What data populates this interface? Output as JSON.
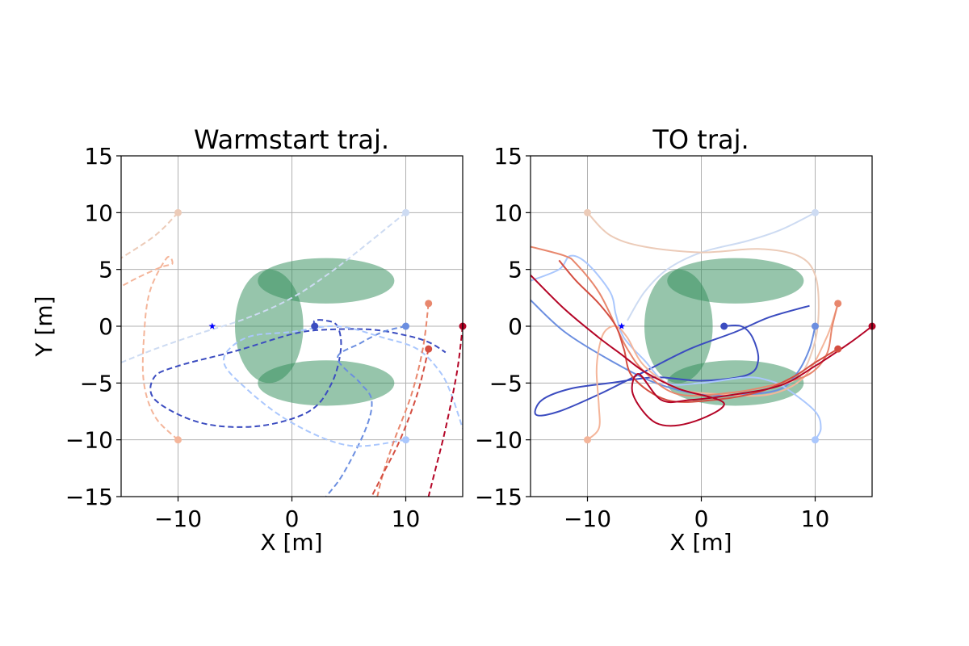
{
  "colors": {
    "obstacle": "#2e8b57",
    "goal_marker": "#0000ff",
    "grid": "#b0b0b0"
  },
  "chart_data": [
    {
      "type": "line",
      "title": "Warmstart traj.",
      "xlabel": "X [m]",
      "ylabel": "Y [m]",
      "xlim": [
        -15,
        15
      ],
      "ylim": [
        -15,
        15
      ],
      "xticks": [
        -10,
        0,
        10
      ],
      "yticks": [
        -15,
        -10,
        -5,
        0,
        5,
        10,
        15
      ],
      "xtick_labels": [
        "−10",
        "0",
        "10"
      ],
      "ytick_labels": [
        "−15",
        "−10",
        "−5",
        "0",
        "5",
        "10",
        "15"
      ],
      "grid": true,
      "line_style": "dashed",
      "obstacles": [
        {
          "shape": "ellipse",
          "cx": 3,
          "cy": 4,
          "rx": 6,
          "ry": 2
        },
        {
          "shape": "ellipse",
          "cx": 3,
          "cy": -5,
          "rx": 6,
          "ry": 2
        },
        {
          "shape": "ellipse",
          "cx": -2,
          "cy": 0,
          "rx": 3,
          "ry": 5
        }
      ],
      "goal": {
        "x": -7,
        "y": 0
      },
      "series": [
        {
          "color": "#3b4cc0",
          "start": {
            "x": 2,
            "y": 0
          },
          "points": [
            [
              2,
              0
            ],
            [
              2,
              0.5
            ],
            [
              3,
              0.5
            ],
            [
              4,
              0
            ],
            [
              4.3,
              -2
            ],
            [
              3.5,
              -5
            ],
            [
              1.5,
              -7.5
            ],
            [
              -3,
              -8.8
            ],
            [
              -8,
              -8.5
            ],
            [
              -12,
              -6.5
            ],
            [
              -12.1,
              -4.5
            ],
            [
              -10,
              -3.5
            ],
            [
              -5,
              -2.2
            ],
            [
              0,
              -0.7
            ],
            [
              3,
              -0.3
            ],
            [
              7,
              -0.3
            ],
            [
              10,
              -0.8
            ],
            [
              12,
              -1.4
            ],
            [
              13.5,
              -2.3
            ]
          ]
        },
        {
          "color": "#6b8ee0",
          "start": {
            "x": 10,
            "y": 0
          },
          "points": [
            [
              10,
              0
            ],
            [
              8,
              -0.5
            ],
            [
              6,
              -1.5
            ],
            [
              4,
              -2.8
            ],
            [
              6,
              -5
            ],
            [
              7,
              -6.5
            ],
            [
              6.5,
              -9
            ],
            [
              4.5,
              -13
            ],
            [
              3,
              -15
            ]
          ]
        },
        {
          "color": "#aac7fd",
          "start": {
            "x": 10,
            "y": -10
          },
          "points": [
            [
              10,
              -10
            ],
            [
              5,
              -10.5
            ],
            [
              0,
              -8.5
            ],
            [
              -4,
              -5.5
            ],
            [
              -6,
              -3
            ],
            [
              -4,
              -1
            ],
            [
              0,
              -0.5
            ],
            [
              4,
              0
            ],
            [
              8,
              -1
            ],
            [
              11,
              -2
            ],
            [
              13,
              -4
            ],
            [
              14,
              -6
            ],
            [
              15,
              -9
            ]
          ]
        },
        {
          "color": "#cddbf2",
          "start": {
            "x": 10,
            "y": 10
          },
          "points": [
            [
              10,
              10
            ],
            [
              4,
              5.2
            ],
            [
              0,
              2.5
            ],
            [
              -4,
              0.7
            ],
            [
              -8,
              -0.6
            ],
            [
              -12,
              -2
            ],
            [
              -15,
              -3.2
            ]
          ]
        },
        {
          "color": "#eccbb8",
          "start": {
            "x": -10,
            "y": 10
          },
          "points": [
            [
              -10,
              10
            ],
            [
              -12,
              8
            ],
            [
              -15,
              6
            ]
          ]
        },
        {
          "color": "#f4b59a",
          "start": {
            "x": -10,
            "y": -10
          },
          "points": [
            [
              -10,
              -10
            ],
            [
              -12,
              -8
            ],
            [
              -13,
              -5
            ],
            [
              -13,
              -1
            ],
            [
              -12.5,
              3
            ],
            [
              -11,
              6
            ],
            [
              -10.5,
              5.5
            ],
            [
              -11.5,
              5.2
            ],
            [
              -13.5,
              4.3
            ],
            [
              -15,
              3.5
            ]
          ]
        },
        {
          "color": "#e8876d",
          "start": {
            "x": 12,
            "y": 2
          },
          "points": [
            [
              12,
              2
            ],
            [
              11.5,
              -2
            ],
            [
              10.5,
              -6
            ],
            [
              9,
              -10
            ],
            [
              8,
              -13
            ],
            [
              7.5,
              -15
            ]
          ]
        },
        {
          "color": "#d44e41",
          "start": {
            "x": 12,
            "y": -2
          },
          "points": [
            [
              12,
              -2
            ],
            [
              11,
              -6
            ],
            [
              9.5,
              -10
            ],
            [
              8,
              -13
            ],
            [
              7,
              -15
            ]
          ]
        },
        {
          "color": "#b40426",
          "start": {
            "x": 15,
            "y": 0
          },
          "points": [
            [
              15,
              0
            ],
            [
              14.5,
              -4
            ],
            [
              13.5,
              -9
            ],
            [
              12.5,
              -13
            ],
            [
              12,
              -15
            ]
          ]
        }
      ]
    },
    {
      "type": "line",
      "title": "TO traj.",
      "xlabel": "X [m]",
      "ylabel": "",
      "xlim": [
        -15,
        15
      ],
      "ylim": [
        -15,
        15
      ],
      "xticks": [
        -10,
        0,
        10
      ],
      "yticks": [
        -15,
        -10,
        -5,
        0,
        5,
        10,
        15
      ],
      "xtick_labels": [
        "−10",
        "0",
        "10"
      ],
      "ytick_labels": [
        "−15",
        "−10",
        "−5",
        "0",
        "5",
        "10",
        "15"
      ],
      "grid": true,
      "line_style": "solid",
      "obstacles": [
        {
          "shape": "ellipse",
          "cx": 3,
          "cy": 4,
          "rx": 6,
          "ry": 2
        },
        {
          "shape": "ellipse",
          "cx": 3,
          "cy": -5,
          "rx": 6,
          "ry": 2
        },
        {
          "shape": "ellipse",
          "cx": -2,
          "cy": 0,
          "rx": 3,
          "ry": 5
        }
      ],
      "goal": {
        "x": -7,
        "y": 0
      },
      "series": [
        {
          "color": "#3b4cc0",
          "start": {
            "x": 2,
            "y": 0
          },
          "points": [
            [
              2,
              0
            ],
            [
              3.5,
              0
            ],
            [
              4.5,
              -1
            ],
            [
              5,
              -3
            ],
            [
              4,
              -4.3
            ],
            [
              0,
              -4.8
            ],
            [
              -4,
              -4.5
            ],
            [
              -8,
              -5
            ],
            [
              -11.5,
              -5.5
            ],
            [
              -14,
              -6.5
            ],
            [
              -14.5,
              -7.8
            ],
            [
              -12.5,
              -7.5
            ],
            [
              -9,
              -6
            ],
            [
              -5,
              -4
            ],
            [
              -1,
              -2
            ],
            [
              3,
              -0.5
            ],
            [
              6,
              0.8
            ],
            [
              9.5,
              1.8
            ]
          ]
        },
        {
          "color": "#6b8ee0",
          "start": {
            "x": 10,
            "y": 0
          },
          "points": [
            [
              10,
              0
            ],
            [
              9.5,
              -2
            ],
            [
              8.5,
              -4
            ],
            [
              7,
              -5.5
            ],
            [
              4,
              -6
            ],
            [
              0,
              -6
            ],
            [
              -4,
              -5
            ],
            [
              -8,
              -3
            ],
            [
              -12,
              -0.5
            ],
            [
              -15,
              2.3
            ]
          ]
        },
        {
          "color": "#aac7fd",
          "start": {
            "x": 10,
            "y": -10
          },
          "points": [
            [
              10,
              -10
            ],
            [
              10.5,
              -9
            ],
            [
              10,
              -7.5
            ],
            [
              7.5,
              -5.5
            ],
            [
              6,
              -4.8
            ],
            [
              4,
              -4.5
            ],
            [
              0,
              -5
            ],
            [
              -3,
              -5
            ],
            [
              -5,
              -3
            ],
            [
              -6.8,
              -1
            ],
            [
              -7.5,
              1
            ],
            [
              -8,
              3
            ],
            [
              -10,
              5.5
            ],
            [
              -11.5,
              6.2
            ],
            [
              -12.5,
              5
            ],
            [
              -15,
              4
            ]
          ]
        },
        {
          "color": "#cddbf2",
          "start": {
            "x": 10,
            "y": 10
          },
          "points": [
            [
              10,
              10
            ],
            [
              7,
              8.5
            ],
            [
              4,
              7.5
            ],
            [
              0,
              6.5
            ],
            [
              -3,
              5
            ],
            [
              -5,
              3
            ],
            [
              -6.5,
              0.5
            ]
          ]
        },
        {
          "color": "#eccbb8",
          "start": {
            "x": -10,
            "y": 10
          },
          "points": [
            [
              -10,
              10
            ],
            [
              -8,
              8
            ],
            [
              -5,
              7
            ],
            [
              0,
              6.5
            ],
            [
              5,
              6.8
            ],
            [
              8.5,
              6.2
            ],
            [
              10,
              4.5
            ],
            [
              10.3,
              1
            ],
            [
              9.8,
              -2
            ],
            [
              8.5,
              -4.5
            ],
            [
              6,
              -5.5
            ]
          ]
        },
        {
          "color": "#f4b59a",
          "start": {
            "x": -10,
            "y": -10
          },
          "points": [
            [
              -10,
              -10
            ],
            [
              -9,
              -9
            ],
            [
              -9,
              -7
            ],
            [
              -9.2,
              -4
            ],
            [
              -9,
              -2
            ],
            [
              -8.5,
              -0.5
            ],
            [
              -7.5,
              0
            ],
            [
              -6.5,
              -1
            ],
            [
              -5,
              -3.5
            ],
            [
              -2,
              -5.5
            ],
            [
              2,
              -6
            ],
            [
              6,
              -6
            ],
            [
              9,
              -4.5
            ],
            [
              11,
              -1
            ],
            [
              12,
              2
            ]
          ]
        },
        {
          "color": "#e8876d",
          "start": {
            "x": 12,
            "y": 2
          },
          "points": [
            [
              12,
              2
            ],
            [
              11.5,
              0
            ],
            [
              11,
              -2.5
            ],
            [
              9.5,
              -4.2
            ],
            [
              7,
              -5
            ],
            [
              3,
              -5.8
            ],
            [
              -2,
              -6
            ],
            [
              -5,
              -4
            ],
            [
              -6.5,
              -2
            ],
            [
              -7.5,
              0
            ],
            [
              -9,
              3
            ],
            [
              -11,
              5.5
            ],
            [
              -12,
              6.2
            ],
            [
              -15,
              7
            ]
          ]
        },
        {
          "color": "#d44e41",
          "start": {
            "x": 12,
            "y": -2
          },
          "points": [
            [
              12,
              -2
            ],
            [
              10,
              -3.2
            ],
            [
              8,
              -4.5
            ],
            [
              5,
              -5.8
            ],
            [
              1,
              -6.5
            ],
            [
              -3,
              -6.5
            ],
            [
              -6,
              -4.5
            ],
            [
              -6.8,
              -2
            ],
            [
              -7.5,
              0
            ],
            [
              -9,
              2
            ],
            [
              -11,
              4
            ],
            [
              -12.5,
              5.8
            ]
          ]
        },
        {
          "color": "#b40426",
          "start": {
            "x": 15,
            "y": 0
          },
          "points": [
            [
              15,
              0
            ],
            [
              13,
              -1.5
            ],
            [
              10,
              -3.5
            ],
            [
              7,
              -5.2
            ],
            [
              3,
              -6
            ],
            [
              -1,
              -6.5
            ],
            [
              -3.5,
              -6.5
            ],
            [
              -5.5,
              -4.2
            ],
            [
              -6,
              -6
            ],
            [
              -4,
              -8.5
            ],
            [
              -1,
              -8.5
            ],
            [
              2,
              -6.8
            ],
            [
              -2,
              -5.5
            ],
            [
              -5,
              -4
            ],
            [
              -7,
              -2.5
            ],
            [
              -9,
              -1
            ],
            [
              -12,
              1.5
            ],
            [
              -15,
              4.5
            ]
          ]
        }
      ]
    }
  ]
}
